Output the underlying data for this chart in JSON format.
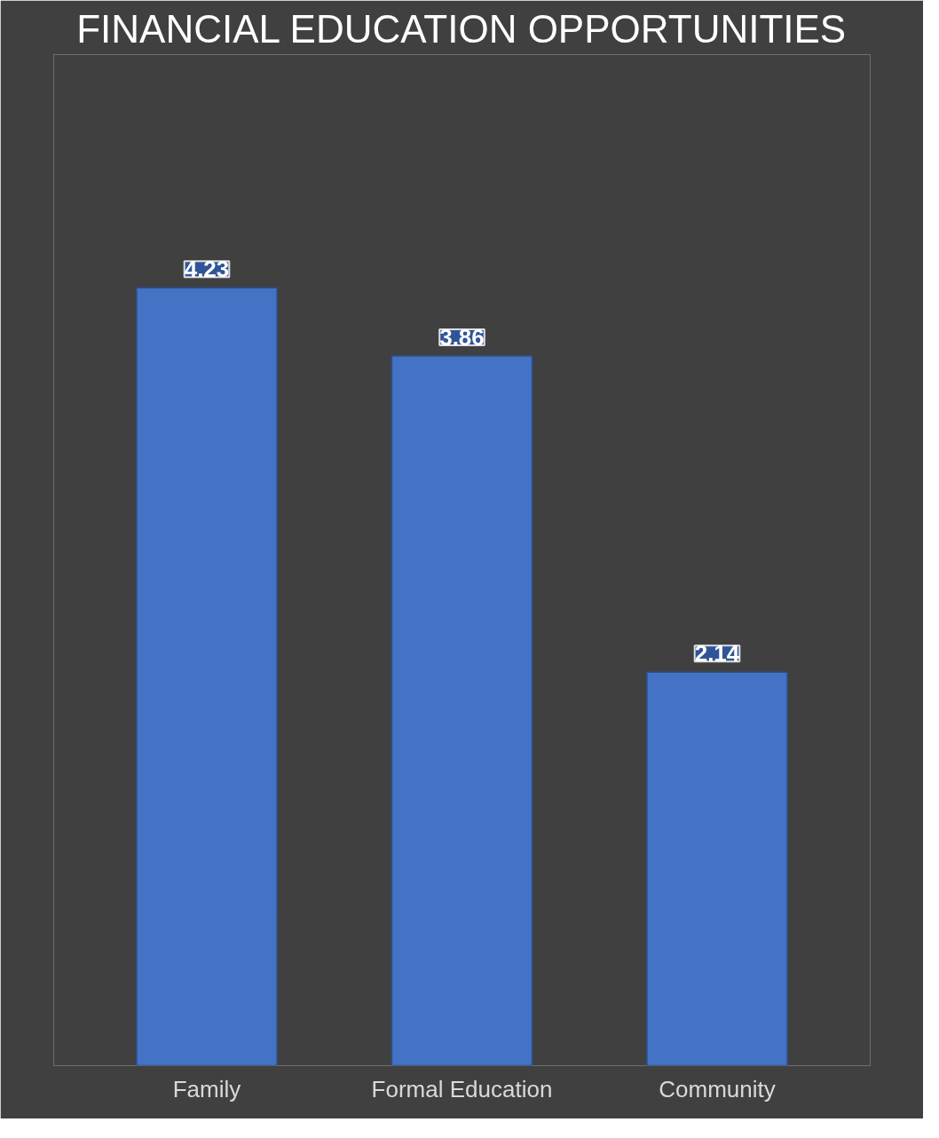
{
  "chart_data": {
    "type": "bar",
    "title": "FINANCIAL EDUCATION OPPORTUNITIES",
    "categories": [
      "Family",
      "Formal Education",
      "Community"
    ],
    "values": [
      4.23,
      3.86,
      2.14
    ],
    "color": "#4472c4",
    "data_labels": true
  }
}
